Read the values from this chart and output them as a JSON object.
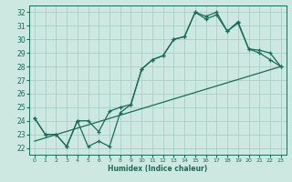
{
  "xlabel": "Humidex (Indice chaleur)",
  "background_color": "#cce8e0",
  "grid_color": "#aad0c8",
  "line_color": "#1a6b5a",
  "xlim": [
    -0.5,
    23.5
  ],
  "ylim": [
    21.5,
    32.5
  ],
  "xticks": [
    0,
    1,
    2,
    3,
    4,
    5,
    6,
    7,
    8,
    9,
    10,
    11,
    12,
    13,
    14,
    15,
    16,
    17,
    18,
    19,
    20,
    21,
    22,
    23
  ],
  "yticks": [
    22,
    23,
    24,
    25,
    26,
    27,
    28,
    29,
    30,
    31,
    32
  ],
  "line1_x": [
    0,
    1,
    2,
    3,
    4,
    5,
    6,
    7,
    8,
    9,
    10,
    11,
    12,
    13,
    14,
    15,
    16,
    17,
    18,
    19,
    20,
    21,
    22,
    23
  ],
  "line1_y": [
    24.2,
    23.0,
    23.0,
    22.1,
    24.0,
    22.1,
    22.5,
    22.1,
    24.6,
    25.2,
    27.8,
    28.5,
    28.8,
    30.0,
    30.2,
    32.0,
    31.7,
    32.0,
    30.6,
    31.3,
    29.3,
    29.2,
    29.0,
    28.0
  ],
  "line2_x": [
    0,
    1,
    2,
    3,
    4,
    5,
    6,
    7,
    8,
    9,
    10,
    11,
    12,
    13,
    14,
    15,
    16,
    17,
    18,
    19,
    20,
    21,
    22,
    23
  ],
  "line2_y": [
    24.2,
    23.0,
    23.0,
    22.1,
    24.0,
    24.0,
    23.2,
    24.7,
    25.0,
    25.2,
    27.8,
    28.5,
    28.8,
    30.0,
    30.2,
    32.0,
    31.5,
    31.8,
    30.6,
    31.2,
    29.3,
    29.0,
    28.5,
    28.0
  ],
  "line3_x": [
    0,
    23
  ],
  "line3_y": [
    22.5,
    28.0
  ]
}
